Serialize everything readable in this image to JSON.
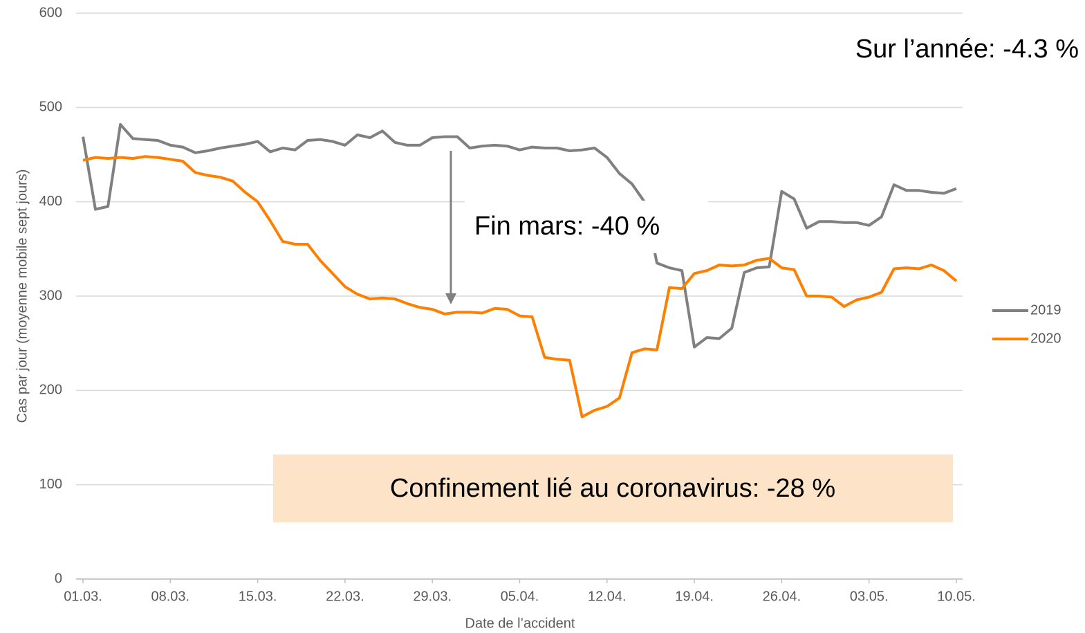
{
  "chart_data": {
    "type": "line",
    "x_label": "Date de l’accident",
    "y_label": "Cas par jour (moyenne mobile sept jours)",
    "categories": [
      "01.03.",
      null,
      null,
      null,
      null,
      null,
      null,
      "08.03.",
      null,
      null,
      null,
      null,
      null,
      null,
      "15.03.",
      null,
      null,
      null,
      null,
      null,
      null,
      "22.03.",
      null,
      null,
      null,
      null,
      null,
      null,
      "29.03.",
      null,
      null,
      null,
      null,
      null,
      null,
      "05.04.",
      null,
      null,
      null,
      null,
      null,
      null,
      "12.04.",
      null,
      null,
      null,
      null,
      null,
      null,
      "19.04.",
      null,
      null,
      null,
      null,
      null,
      null,
      "26.04.",
      null,
      null,
      null,
      null,
      null,
      null,
      "03.05.",
      null,
      null,
      null,
      null,
      null,
      null,
      "10.05."
    ],
    "series": [
      {
        "name": "2019",
        "color": "#808080",
        "values": [
          469,
          392,
          395,
          482,
          467,
          466,
          465,
          460,
          458,
          452,
          454,
          457,
          459,
          461,
          464,
          453,
          457,
          455,
          465,
          466,
          464,
          460,
          471,
          468,
          475,
          463,
          460,
          460,
          468,
          469,
          469,
          457,
          459,
          460,
          459,
          455,
          458,
          457,
          457,
          454,
          455,
          457,
          447,
          430,
          419,
          400,
          335,
          330,
          327,
          246,
          256,
          255,
          266,
          325,
          330,
          331,
          411,
          403,
          372,
          379,
          379,
          378,
          378,
          375,
          384,
          418,
          412,
          412,
          410,
          409,
          414
        ]
      },
      {
        "name": "2020",
        "color": "#ff8000",
        "values": [
          444,
          447,
          446,
          447,
          446,
          448,
          447,
          445,
          443,
          431,
          428,
          426,
          422,
          410,
          400,
          380,
          358,
          355,
          355,
          338,
          324,
          310,
          302,
          297,
          298,
          297,
          292,
          288,
          286,
          281,
          283,
          283,
          282,
          287,
          286,
          279,
          278,
          235,
          233,
          232,
          172,
          179,
          183,
          192,
          240,
          244,
          243,
          309,
          308,
          324,
          327,
          333,
          332,
          333,
          338,
          340,
          330,
          328,
          300,
          300,
          299,
          289,
          296,
          299,
          304,
          329,
          330,
          329,
          333,
          327,
          316
        ]
      }
    ],
    "ylim": [
      0,
      600
    ],
    "yticks": [
      0,
      100,
      200,
      300,
      400,
      500,
      600
    ],
    "grid": true,
    "legend": "right",
    "annotations": [
      "Sur l’année: -4.3 %",
      "Fin mars: -40 %",
      "Confinement lié au coronavirus: -28 %"
    ]
  }
}
